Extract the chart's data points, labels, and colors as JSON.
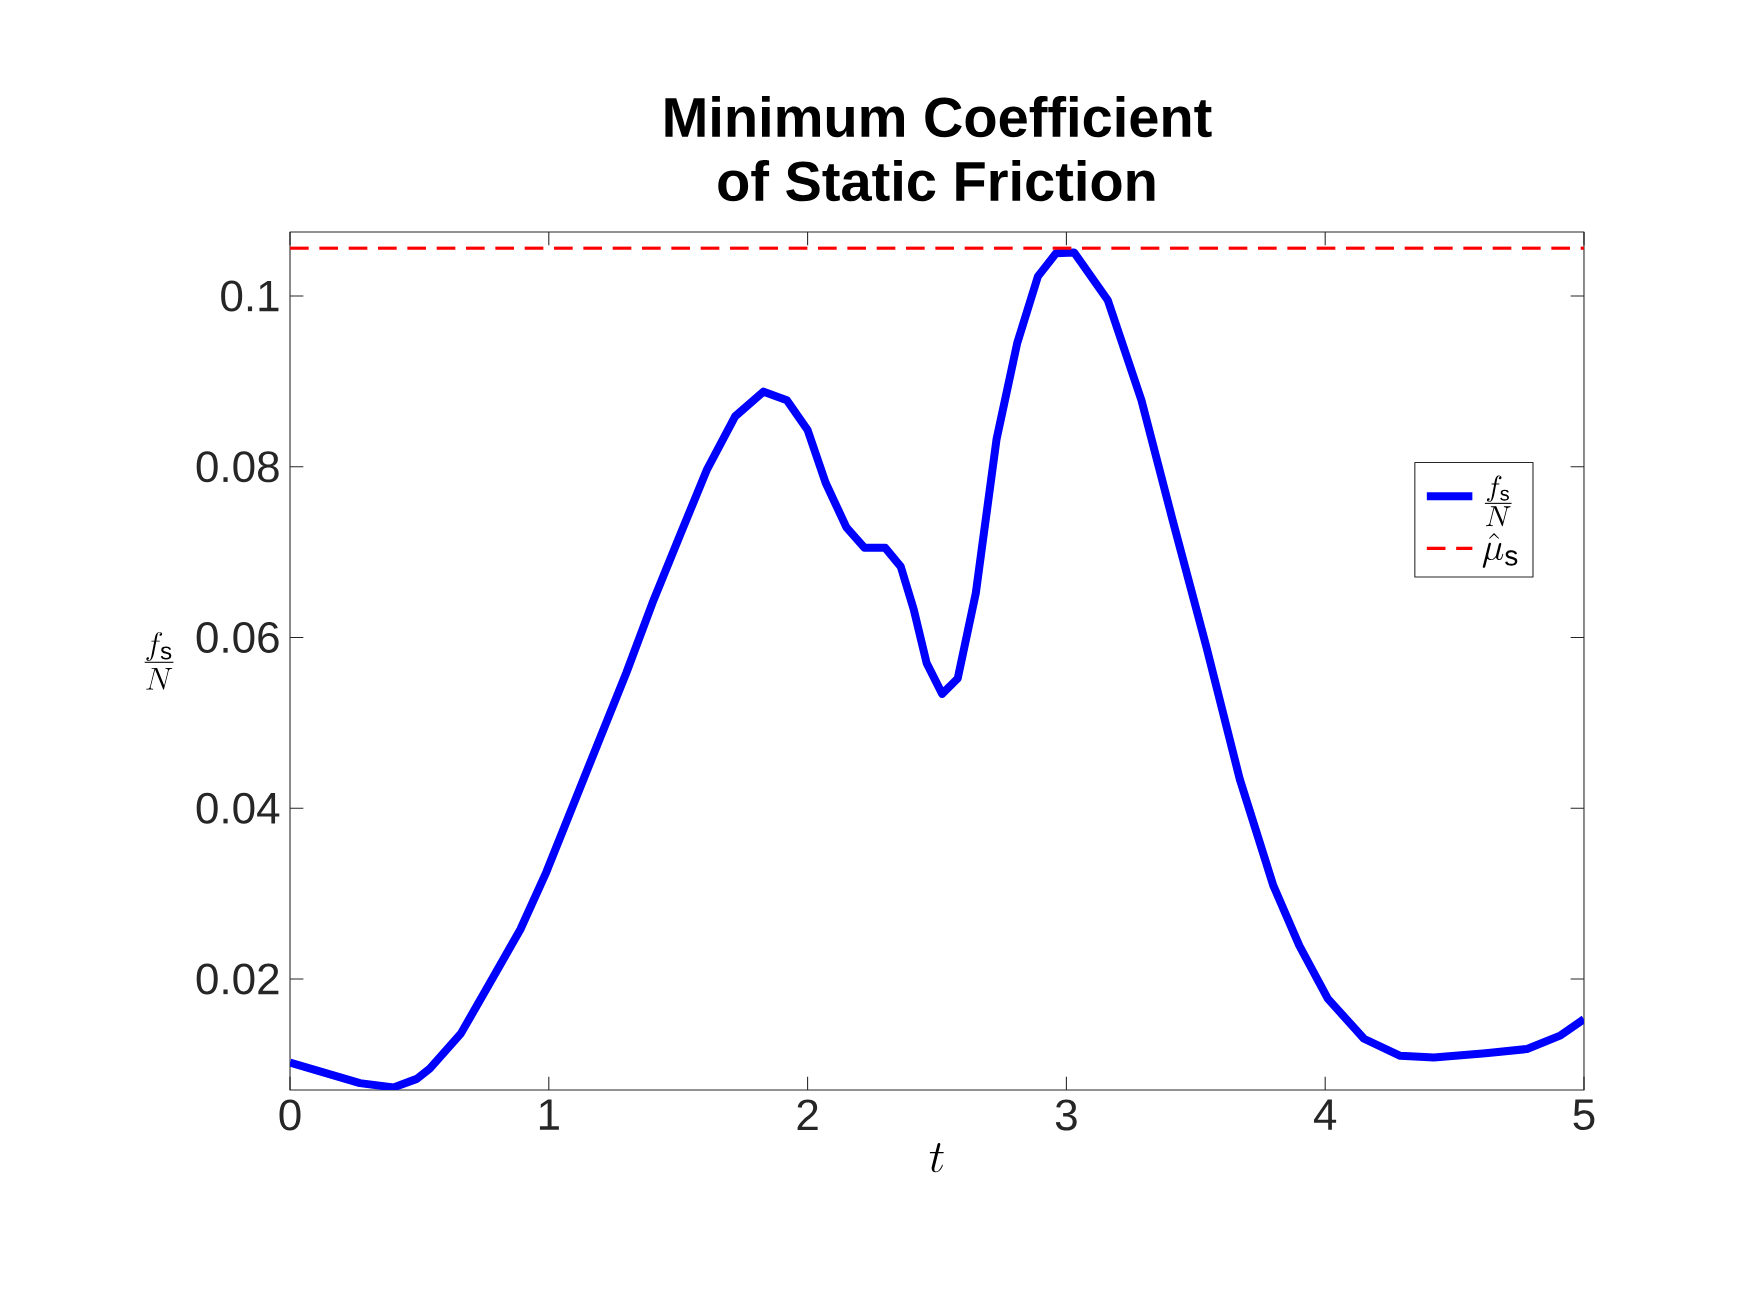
{
  "chart_data": {
    "type": "line",
    "title": "Minimum Coefficient\nof Static Friction",
    "xlabel": "t",
    "ylabel": "\\frac{f_\\mathrm{s}}{N}",
    "xlim": [
      0,
      5
    ],
    "ylim": [
      0.007,
      0.1075
    ],
    "xticks": [
      0,
      1,
      2,
      3,
      4,
      5
    ],
    "yticks": [
      0.02,
      0.04,
      0.06,
      0.08,
      0.1
    ],
    "legend": "right",
    "series": [
      {
        "name": "\\frac{f_\\mathrm{s}}{N}",
        "color": "#0000ff",
        "line_style": "solid",
        "x": [
          0,
          0.27,
          0.4,
          0.49,
          0.54,
          0.66,
          0.77,
          0.89,
          0.99,
          1.15,
          1.3,
          1.4,
          1.51,
          1.61,
          1.72,
          1.83,
          1.92,
          2.0,
          2.07,
          2.15,
          2.22,
          2.3,
          2.36,
          2.41,
          2.46,
          2.52,
          2.58,
          2.65,
          2.73,
          2.81,
          2.89,
          2.96,
          3.03,
          3.16,
          3.29,
          3.41,
          3.54,
          3.67,
          3.8,
          3.9,
          4.01,
          4.15,
          4.29,
          4.42,
          4.62,
          4.78,
          4.91,
          5.0
        ],
        "values": [
          0.0102,
          0.0078,
          0.0073,
          0.0083,
          0.0095,
          0.0136,
          0.0194,
          0.0258,
          0.0325,
          0.0446,
          0.0559,
          0.064,
          0.0722,
          0.0796,
          0.0859,
          0.0888,
          0.0878,
          0.0843,
          0.0781,
          0.0729,
          0.0705,
          0.0705,
          0.0683,
          0.0633,
          0.057,
          0.0534,
          0.0552,
          0.0652,
          0.0832,
          0.0945,
          0.1023,
          0.105,
          0.1051,
          0.0995,
          0.0878,
          0.0738,
          0.059,
          0.0434,
          0.0309,
          0.0239,
          0.0177,
          0.013,
          0.011,
          0.0108,
          0.0113,
          0.0118,
          0.0134,
          0.0153
        ]
      }
    ],
    "ref_lines": [
      {
        "axis": "y",
        "value": 0.1056,
        "label": "\\hat{\\mu}_\\mathrm{s}",
        "color": "#ff0000",
        "line_style": "dashed"
      }
    ]
  }
}
